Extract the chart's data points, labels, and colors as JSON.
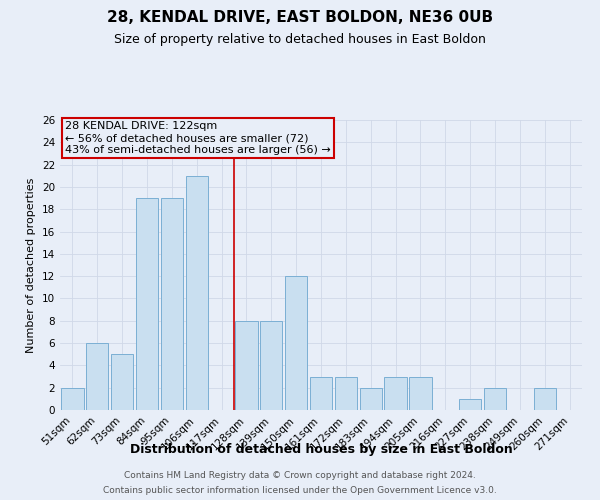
{
  "title": "28, KENDAL DRIVE, EAST BOLDON, NE36 0UB",
  "subtitle": "Size of property relative to detached houses in East Boldon",
  "xlabel": "Distribution of detached houses by size in East Boldon",
  "ylabel": "Number of detached properties",
  "categories": [
    "51sqm",
    "62sqm",
    "73sqm",
    "84sqm",
    "95sqm",
    "106sqm",
    "117sqm",
    "128sqm",
    "139sqm",
    "150sqm",
    "161sqm",
    "172sqm",
    "183sqm",
    "194sqm",
    "205sqm",
    "216sqm",
    "227sqm",
    "238sqm",
    "249sqm",
    "260sqm",
    "271sqm"
  ],
  "values": [
    2,
    6,
    5,
    19,
    19,
    21,
    0,
    8,
    8,
    12,
    3,
    3,
    2,
    3,
    3,
    0,
    1,
    2,
    0,
    2,
    0
  ],
  "bar_color": "#c9dff0",
  "bar_edge_color": "#7bafd4",
  "vline_x": 6.5,
  "vline_color": "#cc0000",
  "annotation_line1": "28 KENDAL DRIVE: 122sqm",
  "annotation_line2": "← 56% of detached houses are smaller (72)",
  "annotation_line3": "43% of semi-detached houses are larger (56) →",
  "annotation_box_color": "#cc0000",
  "ylim": [
    0,
    26
  ],
  "yticks": [
    0,
    2,
    4,
    6,
    8,
    10,
    12,
    14,
    16,
    18,
    20,
    22,
    24,
    26
  ],
  "grid_color": "#d0d8e8",
  "background_color": "#e8eef8",
  "footer_line1": "Contains HM Land Registry data © Crown copyright and database right 2024.",
  "footer_line2": "Contains public sector information licensed under the Open Government Licence v3.0.",
  "title_fontsize": 11,
  "subtitle_fontsize": 9,
  "xlabel_fontsize": 9,
  "ylabel_fontsize": 8,
  "tick_fontsize": 7.5,
  "annotation_fontsize": 8,
  "footer_fontsize": 6.5
}
